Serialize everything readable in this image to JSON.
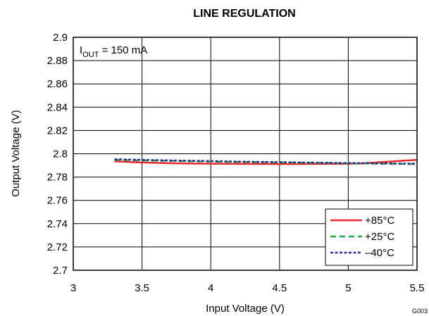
{
  "chart_data": {
    "type": "line",
    "title": "LINE REGULATION",
    "xlabel": "Input Voltage (V)",
    "ylabel": "Output Voltage (V)",
    "xlim": [
      3,
      5.5
    ],
    "ylim": [
      2.7,
      2.9
    ],
    "x_ticks": [
      "3",
      "3.5",
      "4",
      "4.5",
      "5",
      "5.5"
    ],
    "y_ticks": [
      "2.7",
      "2.72",
      "2.74",
      "2.76",
      "2.78",
      "2.8",
      "2.82",
      "2.84",
      "2.86",
      "2.88",
      "2.9"
    ],
    "grid": true,
    "legend_position": "bottom-right",
    "annotation": {
      "main": "I",
      "sub": "OUT",
      "rest": " = 150 mA"
    },
    "figure_id": "G003",
    "series": [
      {
        "name": "+85°C",
        "color": "#e8262b",
        "dash": "solid",
        "x": [
          3.3,
          3.5,
          3.75,
          4.0,
          4.25,
          4.5,
          4.75,
          5.0,
          5.1,
          5.2,
          5.3,
          5.4,
          5.5
        ],
        "y": [
          2.7935,
          2.7925,
          2.7918,
          2.7915,
          2.7913,
          2.7912,
          2.7913,
          2.7915,
          2.7918,
          2.7925,
          2.7933,
          2.794,
          2.7948
        ]
      },
      {
        "name": "+25°C",
        "color": "#1aa64a",
        "dash": "dashed",
        "x": [
          3.3,
          3.5,
          3.75,
          4.0,
          4.25,
          4.5,
          4.75,
          5.0,
          5.25,
          5.5
        ],
        "y": [
          2.7948,
          2.7943,
          2.7938,
          2.7933,
          2.7929,
          2.7925,
          2.7922,
          2.7918,
          2.7915,
          2.7912
        ]
      },
      {
        "name": "–40°C",
        "color": "#2b2f8a",
        "dash": "dotted",
        "x": [
          3.3,
          3.5,
          3.75,
          4.0,
          4.25,
          4.5,
          4.75,
          5.0,
          5.25,
          5.5
        ],
        "y": [
          2.7953,
          2.7948,
          2.7942,
          2.7937,
          2.7932,
          2.7928,
          2.7924,
          2.792,
          2.7917,
          2.7914
        ]
      }
    ]
  }
}
